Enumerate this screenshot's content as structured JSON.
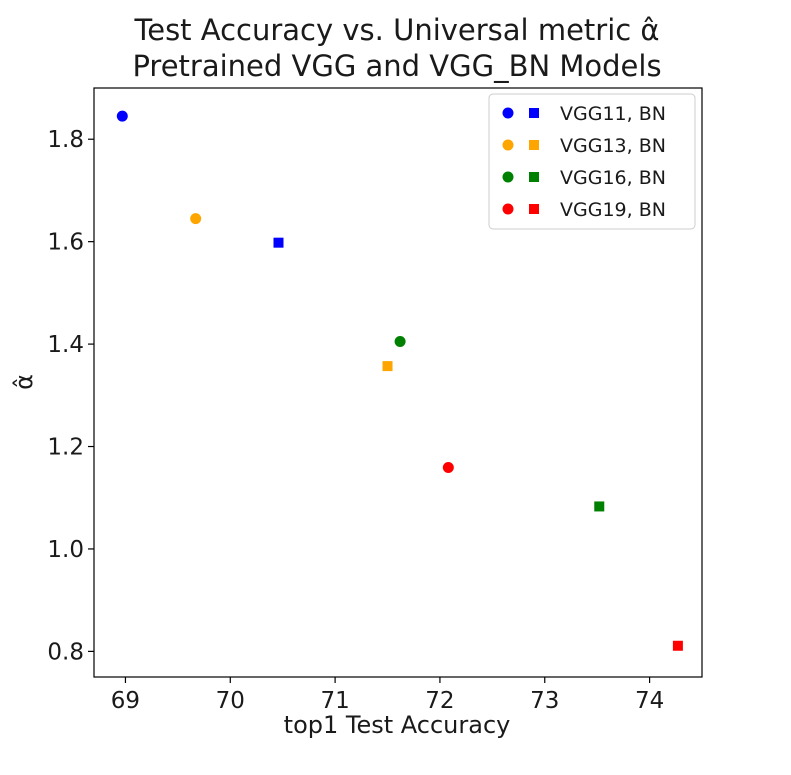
{
  "chart_data": {
    "type": "scatter",
    "title": "Test Accuracy vs. Universal metric α̂",
    "subtitle": "Pretrained VGG and VGG_BN Models",
    "xlabel": "top1 Test Accuracy",
    "ylabel": "α̂",
    "xlim": [
      68.7,
      74.5
    ],
    "ylim": [
      0.75,
      1.9
    ],
    "xticks": [
      69,
      70,
      71,
      72,
      73,
      74
    ],
    "yticks": [
      0.8,
      1.0,
      1.2,
      1.4,
      1.6,
      1.8
    ],
    "xtick_labels": [
      "69",
      "70",
      "71",
      "72",
      "73",
      "74"
    ],
    "ytick_labels": [
      "0.8",
      "1.0",
      "1.2",
      "1.4",
      "1.6",
      "1.8"
    ],
    "grid": false,
    "legend_position": "top-right",
    "series": [
      {
        "name": "VGG11, BN",
        "color": "#0000ff",
        "points": [
          {
            "x": 68.97,
            "y": 1.845,
            "marker": "circle"
          },
          {
            "x": 70.46,
            "y": 1.598,
            "marker": "square"
          }
        ]
      },
      {
        "name": "VGG13, BN",
        "color": "#ffa500",
        "points": [
          {
            "x": 69.67,
            "y": 1.645,
            "marker": "circle"
          },
          {
            "x": 71.5,
            "y": 1.357,
            "marker": "square"
          }
        ]
      },
      {
        "name": "VGG16, BN",
        "color": "#008000",
        "points": [
          {
            "x": 71.62,
            "y": 1.405,
            "marker": "circle"
          },
          {
            "x": 73.52,
            "y": 1.083,
            "marker": "square"
          }
        ]
      },
      {
        "name": "VGG19, BN",
        "color": "#ff0000",
        "points": [
          {
            "x": 72.08,
            "y": 1.159,
            "marker": "circle"
          },
          {
            "x": 74.27,
            "y": 0.811,
            "marker": "square"
          }
        ]
      }
    ]
  }
}
